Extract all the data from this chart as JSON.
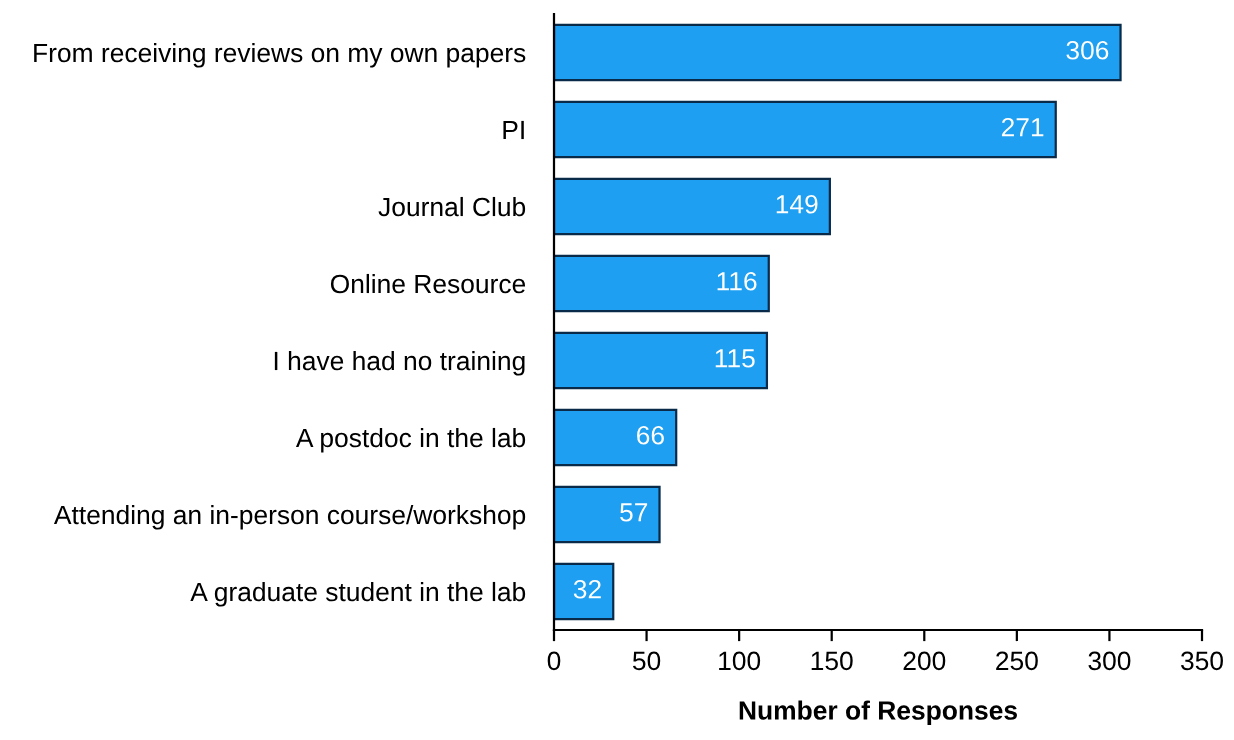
{
  "chart_data": {
    "type": "bar",
    "orientation": "horizontal",
    "xlabel": "Number of Responses",
    "categories": [
      "From receiving reviews on my own papers",
      "PI",
      "Journal Club",
      "Online Resource",
      "I have had no training",
      "A postdoc in the lab",
      "Attending an in-person course/workshop",
      "A graduate student in the lab"
    ],
    "values": [
      306,
      271,
      149,
      116,
      115,
      66,
      57,
      32
    ],
    "color": "#1e9ff2",
    "xlim": [
      0,
      350
    ],
    "xticks": [
      0,
      50,
      100,
      150,
      200,
      250,
      300,
      350
    ],
    "data_labels": true,
    "grid": false,
    "legend": false
  }
}
